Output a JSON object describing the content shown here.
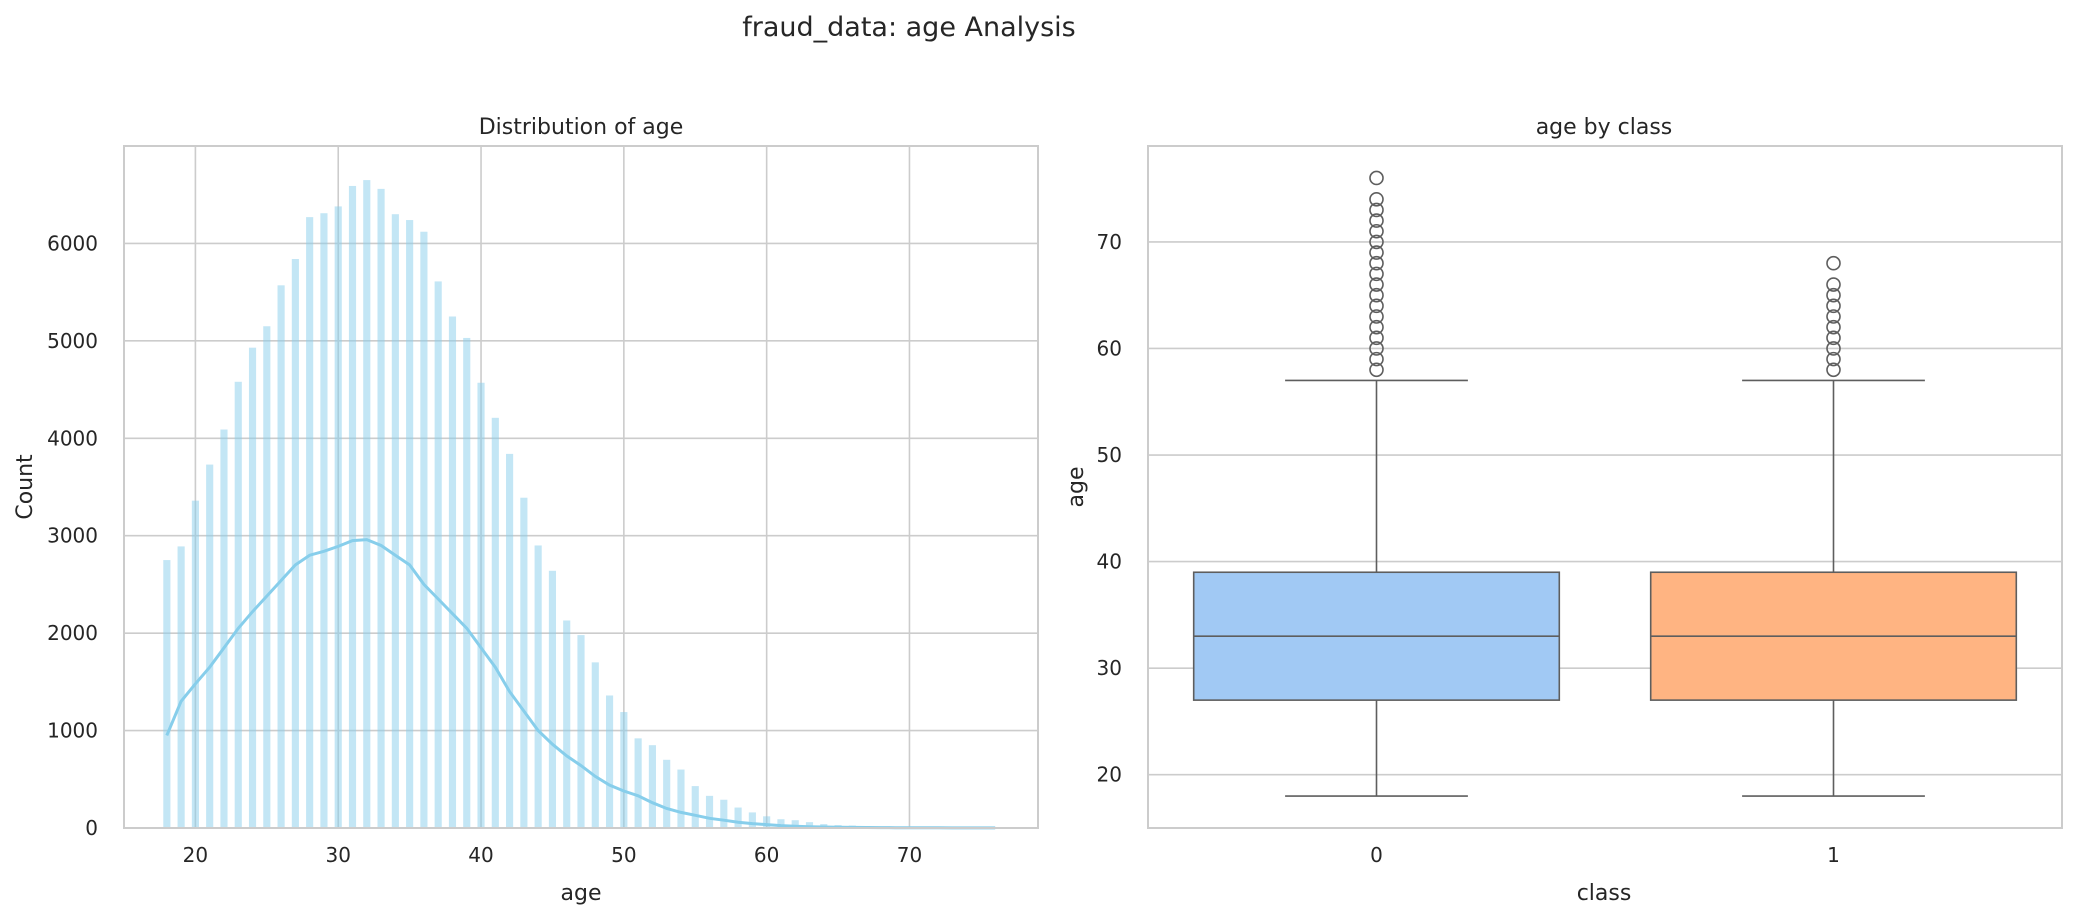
{
  "figure": {
    "title": "fraud_data: age Analysis"
  },
  "chart_data": [
    {
      "type": "histogram",
      "title": "Distribution of age",
      "xlabel": "age",
      "ylabel": "Count",
      "xlim": [
        15,
        79
      ],
      "ylim": [
        0,
        7000
      ],
      "xticks": [
        20,
        30,
        40,
        50,
        60,
        70
      ],
      "yticks": [
        0,
        1000,
        2000,
        3000,
        4000,
        5000,
        6000
      ],
      "grid": true,
      "bar_color": "#87ceeb",
      "kde_color": "#87ceeb",
      "bins": {
        "x": [
          18,
          19,
          20,
          21,
          22,
          23,
          24,
          25,
          26,
          27,
          28,
          29,
          30,
          31,
          32,
          33,
          34,
          35,
          36,
          37,
          38,
          39,
          40,
          41,
          42,
          43,
          44,
          45,
          46,
          47,
          48,
          49,
          50,
          51,
          52,
          53,
          54,
          55,
          56,
          57,
          58,
          59,
          60,
          61,
          62,
          63,
          64,
          65,
          66,
          67,
          68,
          69,
          70,
          71,
          72,
          73,
          74,
          75,
          76
        ],
        "counts": [
          2750,
          2890,
          3360,
          3730,
          4090,
          4580,
          4930,
          5150,
          5570,
          5840,
          6270,
          6310,
          6380,
          6590,
          6650,
          6560,
          6300,
          6240,
          6120,
          5610,
          5250,
          5030,
          4570,
          4210,
          3840,
          3390,
          2900,
          2640,
          2130,
          1980,
          1700,
          1360,
          1190,
          920,
          850,
          700,
          600,
          430,
          330,
          290,
          210,
          160,
          120,
          90,
          80,
          60,
          40,
          30,
          25,
          20,
          15,
          10,
          8,
          6,
          5,
          4,
          3,
          2,
          2
        ]
      },
      "kde": {
        "x": [
          18,
          19,
          20,
          21,
          22,
          23,
          24,
          25,
          26,
          27,
          28,
          29,
          30,
          31,
          32,
          33,
          34,
          35,
          36,
          37,
          38,
          39,
          40,
          41,
          42,
          43,
          44,
          45,
          46,
          47,
          48,
          49,
          50,
          51,
          52,
          53,
          54,
          55,
          56,
          57,
          58,
          59,
          60,
          61,
          62,
          63,
          64,
          65,
          66,
          67,
          68,
          69,
          70,
          71,
          72,
          73,
          74,
          75,
          76
        ],
        "y": [
          950,
          1300,
          1480,
          1650,
          1850,
          2050,
          2220,
          2380,
          2540,
          2700,
          2800,
          2840,
          2890,
          2950,
          2960,
          2900,
          2800,
          2700,
          2500,
          2350,
          2200,
          2050,
          1850,
          1650,
          1400,
          1200,
          1000,
          860,
          740,
          640,
          530,
          440,
          380,
          330,
          260,
          200,
          160,
          130,
          100,
          80,
          60,
          45,
          35,
          25,
          18,
          13,
          10,
          8,
          6,
          5,
          4,
          3,
          3,
          2,
          2,
          1,
          1,
          1,
          1
        ]
      }
    },
    {
      "type": "boxplot",
      "title": "age by class",
      "xlabel": "class",
      "ylabel": "age",
      "categories": [
        "0",
        "1"
      ],
      "ylim": [
        15,
        79
      ],
      "yticks": [
        20,
        30,
        40,
        50,
        60,
        70
      ],
      "grid": true,
      "boxes": [
        {
          "category": "0",
          "color": "#a1c9f4",
          "whisker_low": 18,
          "q1": 27,
          "median": 33,
          "q3": 39,
          "whisker_high": 57,
          "outliers": [
            58,
            59,
            60,
            61,
            62,
            63,
            64,
            65,
            66,
            67,
            68,
            69,
            70,
            71,
            72,
            73,
            74,
            76
          ]
        },
        {
          "category": "1",
          "color": "#ffb482",
          "whisker_low": 18,
          "q1": 27,
          "median": 33,
          "q3": 39,
          "whisker_high": 57,
          "outliers": [
            58,
            59,
            60,
            61,
            62,
            63,
            64,
            65,
            66,
            68
          ]
        }
      ]
    }
  ]
}
